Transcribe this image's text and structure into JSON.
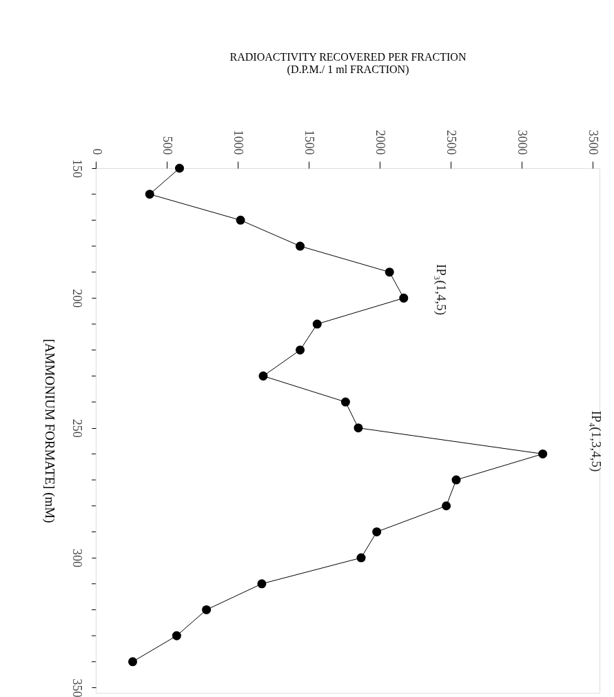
{
  "chart_data": {
    "type": "line",
    "xlabel": "RADIOACTIVITY RECOVERED PER FRACTION\n(D.P.M./ 1 ml FRACTION)",
    "ylabel": "[AMMONIUM FORMATE] (mM)",
    "series": [
      {
        "color": "#000000",
        "x": [
          590,
          380,
          1020,
          1440,
          2070,
          2170,
          1560,
          1440,
          1180,
          1760,
          1850,
          3150,
          2540,
          2470,
          1980,
          1870,
          1170,
          780,
          570,
          260
        ],
        "values": [
          150,
          160,
          170,
          180,
          190,
          200,
          210,
          220,
          230,
          240,
          250,
          260,
          270,
          280,
          290,
          300,
          310,
          320,
          330,
          340
        ]
      }
    ],
    "xlim": [
      0,
      3550
    ],
    "xticks": [
      0,
      500,
      1000,
      1500,
      2000,
      2500,
      3000,
      3500
    ],
    "ylim": [
      352,
      150
    ],
    "yticks": [
      150,
      {
        "value": 160,
        "label": null
      },
      {
        "value": 170,
        "label": null
      },
      {
        "value": 180,
        "label": null
      },
      {
        "value": 190,
        "label": null
      },
      200,
      {
        "value": 210,
        "label": null
      },
      {
        "value": 220,
        "label": null
      },
      {
        "value": 230,
        "label": null
      },
      {
        "value": 240,
        "label": null
      },
      250,
      {
        "value": 260,
        "label": null
      },
      {
        "value": 270,
        "label": null
      },
      {
        "value": 280,
        "label": null
      },
      {
        "value": 290,
        "label": null
      },
      300,
      {
        "value": 310,
        "label": null
      },
      {
        "value": 320,
        "label": null
      },
      {
        "value": 330,
        "label": null
      },
      {
        "value": 340,
        "label": null
      },
      350
    ],
    "annotations": [
      "IP₃(1,4,5)",
      "IP₄(1,3,4,5)"
    ],
    "marker": "circle",
    "line_style": "solid",
    "grid": false,
    "legend": false
  }
}
